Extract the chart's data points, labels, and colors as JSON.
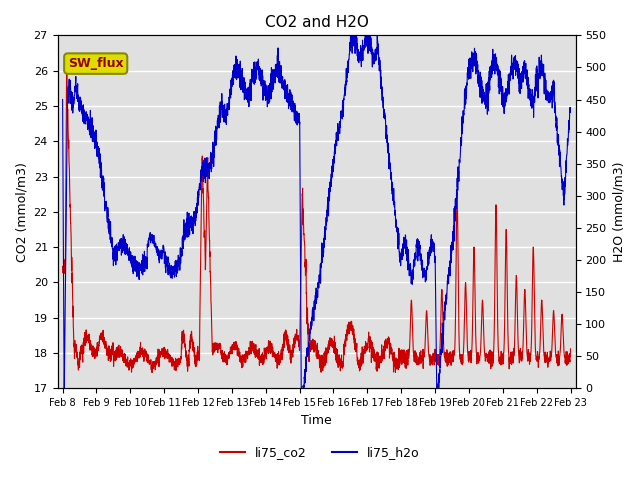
{
  "title": "CO2 and H2O",
  "xlabel": "Time",
  "ylabel_left": "CO2 (mmol/m3)",
  "ylabel_right": "H2O (mmol/m3)",
  "ylim_left": [
    17.0,
    27.0
  ],
  "ylim_right": [
    0,
    550
  ],
  "yticks_left": [
    17.0,
    18.0,
    19.0,
    20.0,
    21.0,
    22.0,
    23.0,
    24.0,
    25.0,
    26.0,
    27.0
  ],
  "yticks_right": [
    0,
    50,
    100,
    150,
    200,
    250,
    300,
    350,
    400,
    450,
    500,
    550
  ],
  "xtick_labels": [
    "Feb 8",
    "Feb 9",
    "Feb 10",
    "Feb 11",
    "Feb 12",
    "Feb 13",
    "Feb 14",
    "Feb 15",
    "Feb 16",
    "Feb 17",
    "Feb 18",
    "Feb 19",
    "Feb 20",
    "Feb 21",
    "Feb 22",
    "Feb 23"
  ],
  "color_co2": "#cc0000",
  "color_h2o": "#0000cc",
  "bg_color": "#e0e0e0",
  "grid_color": "#ffffff",
  "box_facecolor": "#dddd00",
  "box_edgecolor": "#888800",
  "box_text": "SW_flux",
  "box_textcolor": "#990000",
  "legend_labels": [
    "li75_co2",
    "li75_h2o"
  ]
}
